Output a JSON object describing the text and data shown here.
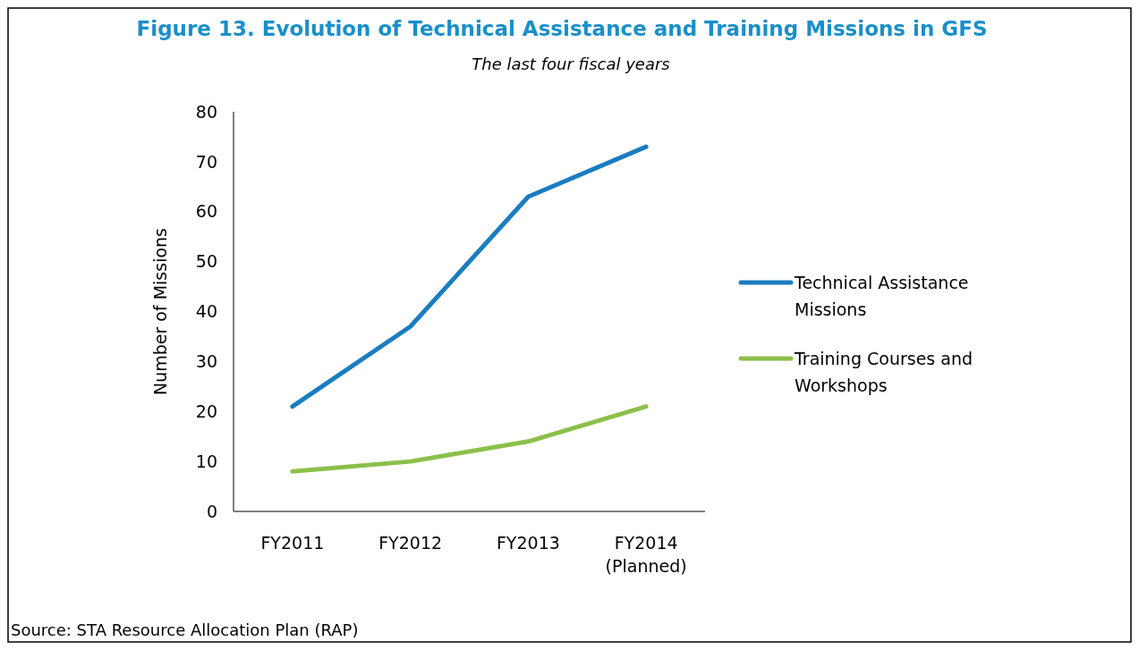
{
  "chart_data": {
    "type": "line",
    "title": "Figure 13. Evolution of Technical Assistance and Training Missions in GFS",
    "subtitle": "The last four fiscal years",
    "ylabel": "Number of Missions",
    "categories": [
      "FY2011",
      "FY2012",
      "FY2013",
      "FY2014 (Planned)"
    ],
    "series": [
      {
        "name": "Technical Assistance Missions",
        "color": "#1a7dc0",
        "values": [
          21,
          37,
          63,
          73
        ]
      },
      {
        "name": "Training Courses and Workshops",
        "color": "#8bc04a",
        "values": [
          8,
          10,
          14,
          21
        ]
      }
    ],
    "ylim": [
      0,
      80
    ],
    "yticks": [
      0,
      10,
      20,
      30,
      40,
      50,
      60,
      70,
      80
    ],
    "grid": false,
    "legend": "right",
    "line_style": "solid",
    "marker": "none",
    "annotations": [
      "Source: STA Resource Allocation Plan (RAP)"
    ]
  }
}
